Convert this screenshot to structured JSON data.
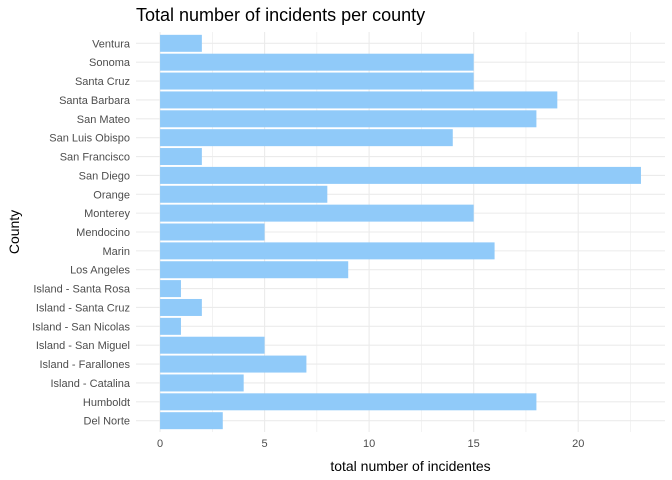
{
  "chart_data": {
    "type": "bar",
    "orientation": "horizontal",
    "title": "Total number of incidents per county",
    "xlabel": "total number of incidentes",
    "ylabel": "County",
    "categories": [
      "Ventura",
      "Sonoma",
      "Santa Cruz",
      "Santa Barbara",
      "San Mateo",
      "San Luis Obispo",
      "San Francisco",
      "San Diego",
      "Orange",
      "Monterey",
      "Mendocino",
      "Marin",
      "Los Angeles",
      "Island - Santa Rosa",
      "Island - Santa Cruz",
      "Island - San Nicolas",
      "Island - San Miguel",
      "Island - Farallones",
      "Island - Catalina",
      "Humboldt",
      "Del Norte"
    ],
    "values": [
      2,
      15,
      15,
      19,
      18,
      14,
      2,
      23,
      8,
      15,
      5,
      16,
      9,
      1,
      2,
      1,
      5,
      7,
      4,
      18,
      3
    ],
    "xticks": [
      0,
      5,
      10,
      15,
      20
    ],
    "xlim": [
      -1.15,
      24.15
    ],
    "grid": true,
    "bar_color": "#90CAF9",
    "grid_color": "#EBEBEB",
    "axis_text_color": "#4D4D4D"
  }
}
